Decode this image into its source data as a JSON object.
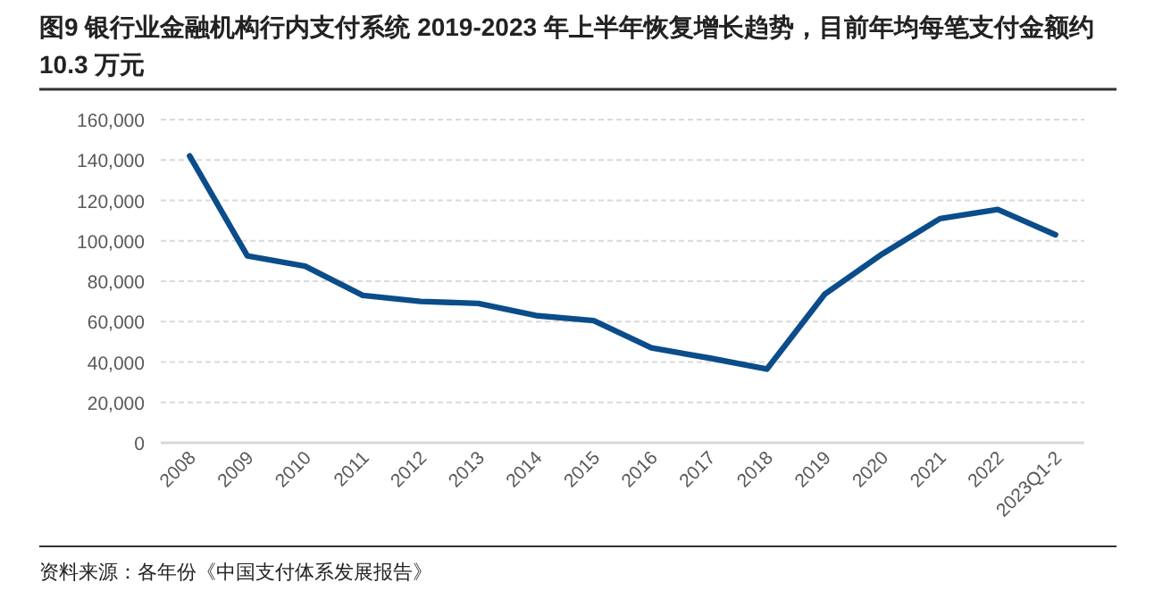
{
  "chart_data": {
    "type": "line",
    "title": "图9  银行业金融机构行内支付系统 2019-2023 年上半年恢复增长趋势，目前年均每笔支付金额约 10.3 万元",
    "categories": [
      "2008",
      "2009",
      "2010",
      "2011",
      "2012",
      "2013",
      "2014",
      "2015",
      "2016",
      "2017",
      "2018",
      "2019",
      "2020",
      "2021",
      "2022",
      "2023Q1-2"
    ],
    "series": [
      {
        "color": "#0b4c8a",
        "values": [
          142000,
          92500,
          87500,
          73000,
          70000,
          69000,
          63000,
          60500,
          47000,
          42000,
          36500,
          73500,
          93500,
          111000,
          115500,
          103000
        ]
      }
    ],
    "ylim": [
      0,
      160000
    ],
    "yticks": [
      {
        "value": 0,
        "label": "0"
      },
      {
        "value": 20000,
        "label": "20,000"
      },
      {
        "value": 40000,
        "label": "40,000"
      },
      {
        "value": 60000,
        "label": "60,000"
      },
      {
        "value": 80000,
        "label": "80,000"
      },
      {
        "value": 100000,
        "label": "100,000"
      },
      {
        "value": 120000,
        "label": "120,000"
      },
      {
        "value": 140000,
        "label": "140,000"
      },
      {
        "value": 160000,
        "label": "160,000"
      }
    ],
    "grid": "y",
    "annotations": [
      "资料来源：各年份《中国支付体系发展报告》"
    ]
  }
}
